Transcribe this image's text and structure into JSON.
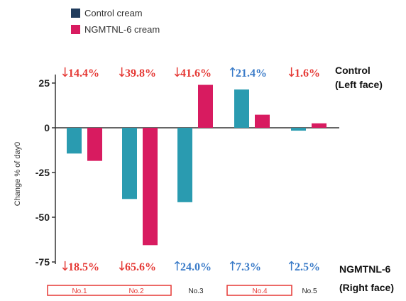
{
  "chart_data": {
    "type": "bar",
    "categories": [
      "No.1",
      "No.2",
      "No.3",
      "No.4",
      "No.5"
    ],
    "series": [
      {
        "name": "Control cream",
        "values": [
          -14.4,
          -39.8,
          -41.6,
          21.4,
          -1.6
        ],
        "color": "#2A9BB0"
      },
      {
        "name": "NGMTNL-6 cream",
        "values": [
          -18.5,
          -65.6,
          24.0,
          7.3,
          2.5
        ],
        "color": "#D81B60"
      }
    ],
    "ylabel": "Change % of day0",
    "yticks": [
      25,
      0,
      -25,
      -50,
      -75
    ],
    "ylim": [
      -75,
      25
    ],
    "legend_position": "top-left",
    "legend_swatch_colors": [
      "#1F3B5C",
      "#D81B60"
    ],
    "highlighted_samples": [
      "No.1",
      "No.2",
      "No.4"
    ],
    "row_labels": {
      "top": [
        "Control",
        "(Left face)"
      ],
      "bottom": [
        "NGMTNL-6",
        "(Right face)"
      ]
    },
    "top_annotations": [
      {
        "arrow": "↓",
        "text": "14.4%",
        "color": "#E53935"
      },
      {
        "arrow": "↓",
        "text": "39.8%",
        "color": "#E53935"
      },
      {
        "arrow": "↓",
        "text": "41.6%",
        "color": "#E53935"
      },
      {
        "arrow": "↑",
        "text": "21.4%",
        "color": "#3A7BC8"
      },
      {
        "arrow": "↓",
        "text": "1.6%",
        "color": "#E53935"
      }
    ],
    "bottom_annotations": [
      {
        "arrow": "↓",
        "text": "18.5%",
        "color": "#E53935"
      },
      {
        "arrow": "↓",
        "text": "65.6%",
        "color": "#E53935"
      },
      {
        "arrow": "↑",
        "text": "24.0%",
        "color": "#3A7BC8"
      },
      {
        "arrow": "↑",
        "text": "7.3%",
        "color": "#3A7BC8"
      },
      {
        "arrow": "↑",
        "text": "2.5%",
        "color": "#3A7BC8"
      }
    ]
  }
}
